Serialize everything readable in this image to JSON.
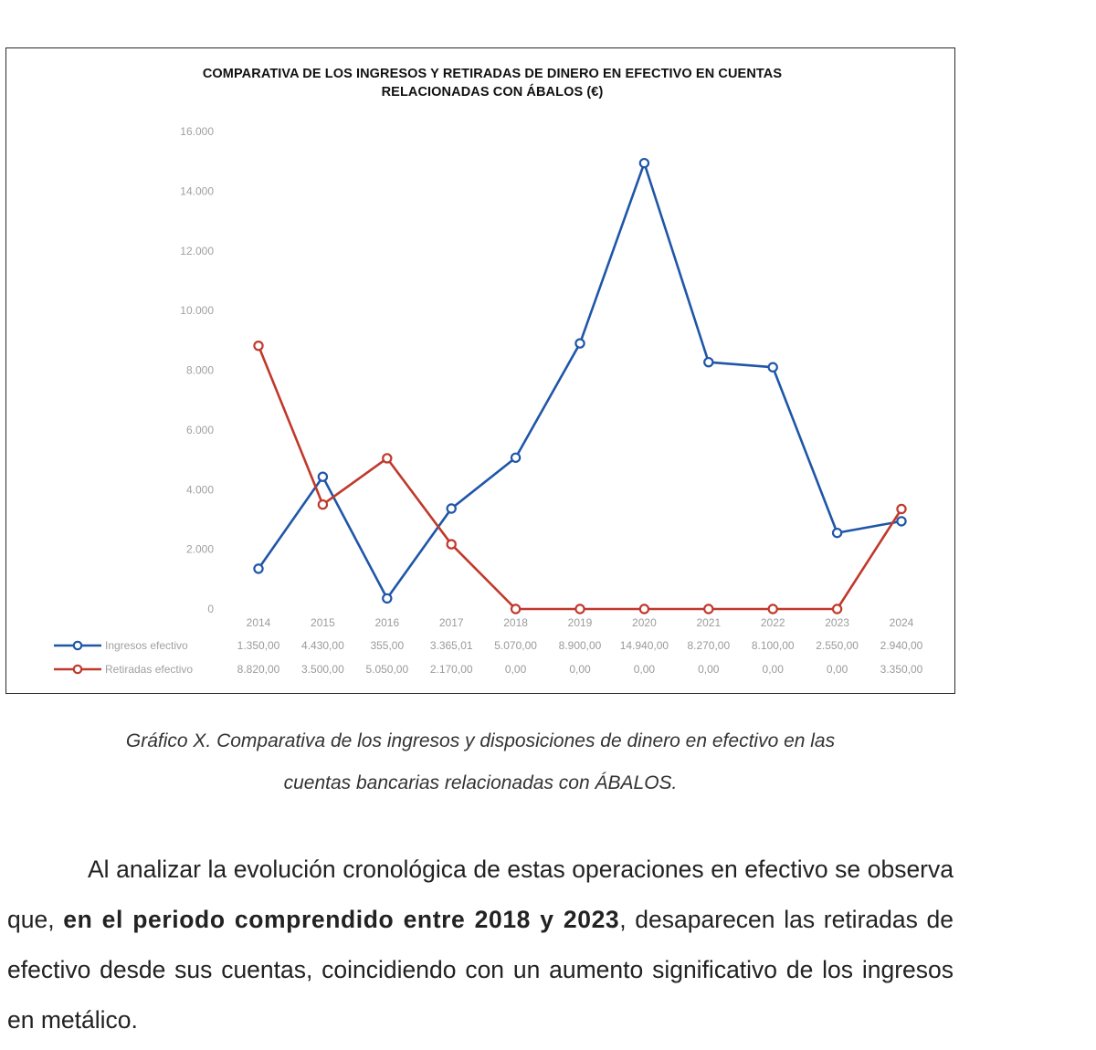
{
  "chart_data": {
    "type": "line",
    "title_line1": "COMPARATIVA DE LOS INGRESOS Y RETIRADAS DE DINERO EN EFECTIVO EN CUENTAS",
    "title_line2": "RELACIONADAS CON ÁBALOS (€)",
    "categories": [
      "2014",
      "2015",
      "2016",
      "2017",
      "2018",
      "2019",
      "2020",
      "2021",
      "2022",
      "2023",
      "2024"
    ],
    "ylim": [
      0,
      16000
    ],
    "yticks": [
      0,
      2000,
      4000,
      6000,
      8000,
      10000,
      12000,
      14000,
      16000
    ],
    "ytick_labels": [
      "0",
      "2.000",
      "4.000",
      "6.000",
      "8.000",
      "10.000",
      "12.000",
      "14.000",
      "16.000"
    ],
    "grid": false,
    "legend": "data-table-left",
    "series": [
      {
        "name": "Ingresos efectivo",
        "color": "#1f56a8",
        "values": [
          1350.0,
          4430.0,
          355.0,
          3365.01,
          5070.0,
          8900.0,
          14940.0,
          8270.0,
          8100.0,
          2550.0,
          2940.0
        ],
        "labels": [
          "1.350,00",
          "4.430,00",
          "355,00",
          "3.365,01",
          "5.070,00",
          "8.900,00",
          "14.940,00",
          "8.270,00",
          "8.100,00",
          "2.550,00",
          "2.940,00"
        ]
      },
      {
        "name": "Retiradas efectivo",
        "color": "#c0392b",
        "values": [
          8820.0,
          3500.0,
          5050.0,
          2170.0,
          0.0,
          0.0,
          0.0,
          0.0,
          0.0,
          0.0,
          3350.0
        ],
        "labels": [
          "8.820,00",
          "3.500,00",
          "5.050,00",
          "2.170,00",
          "0,00",
          "0,00",
          "0,00",
          "0,00",
          "0,00",
          "0,00",
          "3.350,00"
        ]
      }
    ]
  },
  "caption": {
    "line1": "Gráfico X. Comparativa de los ingresos y disposiciones de dinero en efectivo en las",
    "line2": "cuentas bancarias relacionadas con ÁBALOS."
  },
  "paragraph": {
    "part1": "Al analizar la evolución cronológica de estas operaciones en efectivo se observa que, ",
    "bold": "en el periodo comprendido entre 2018 y 2023",
    "part2": ", desaparecen las retiradas de efectivo desde sus cuentas, coincidiendo con un aumento significativo de los ingresos en metálico."
  }
}
